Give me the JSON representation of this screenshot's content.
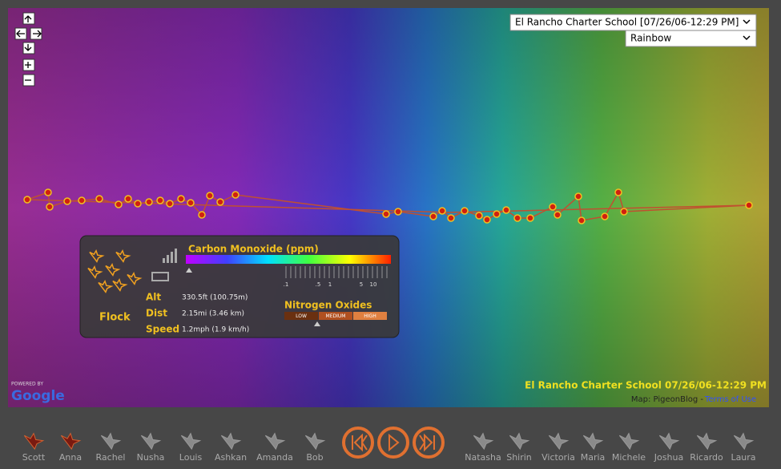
{
  "map": {
    "location_select": "El Rancho Charter School [07/26/06-12:29 PM]",
    "palette_select": "Rainbow",
    "caption": "El Rancho Charter School 07/26/06-12:29 PM",
    "attribution": "Map: PigeonBlog -",
    "terms_link": "Terms of Use",
    "powered_by": "POWERED BY",
    "provider": "Google"
  },
  "panel": {
    "co_title": "Carbon Monoxide (ppm)",
    "co_scale": [
      ".1",
      ".5",
      "1",
      "5",
      "10"
    ],
    "flock_label": "Flock",
    "stats": [
      {
        "label": "Alt",
        "value": "330.5ft (100.75m)"
      },
      {
        "label": "Dist",
        "value": "2.15mi (3.46 km)"
      },
      {
        "label": "Speed",
        "value": "1.2mph (1.9 km/h)"
      }
    ],
    "nox_title": "Nitrogen Oxides",
    "nox_levels": [
      "LOW",
      "MEDIUM",
      "HIGH"
    ]
  },
  "birds": [
    {
      "name": "Scott",
      "active": true
    },
    {
      "name": "Anna",
      "active": true
    },
    {
      "name": "Rachel",
      "active": false
    },
    {
      "name": "Nusha",
      "active": false
    },
    {
      "name": "Louis",
      "active": false
    },
    {
      "name": "Ashkan",
      "active": false
    },
    {
      "name": "Amanda",
      "active": false
    },
    {
      "name": "Bob",
      "active": false
    },
    {
      "name": "Natasha",
      "active": false
    },
    {
      "name": "Shirin",
      "active": false
    },
    {
      "name": "Victoria",
      "active": false
    },
    {
      "name": "Maria",
      "active": false
    },
    {
      "name": "Michele",
      "active": false
    },
    {
      "name": "Joshua",
      "active": false
    },
    {
      "name": "Ricardo",
      "active": false
    },
    {
      "name": "Laura",
      "active": false
    }
  ]
}
